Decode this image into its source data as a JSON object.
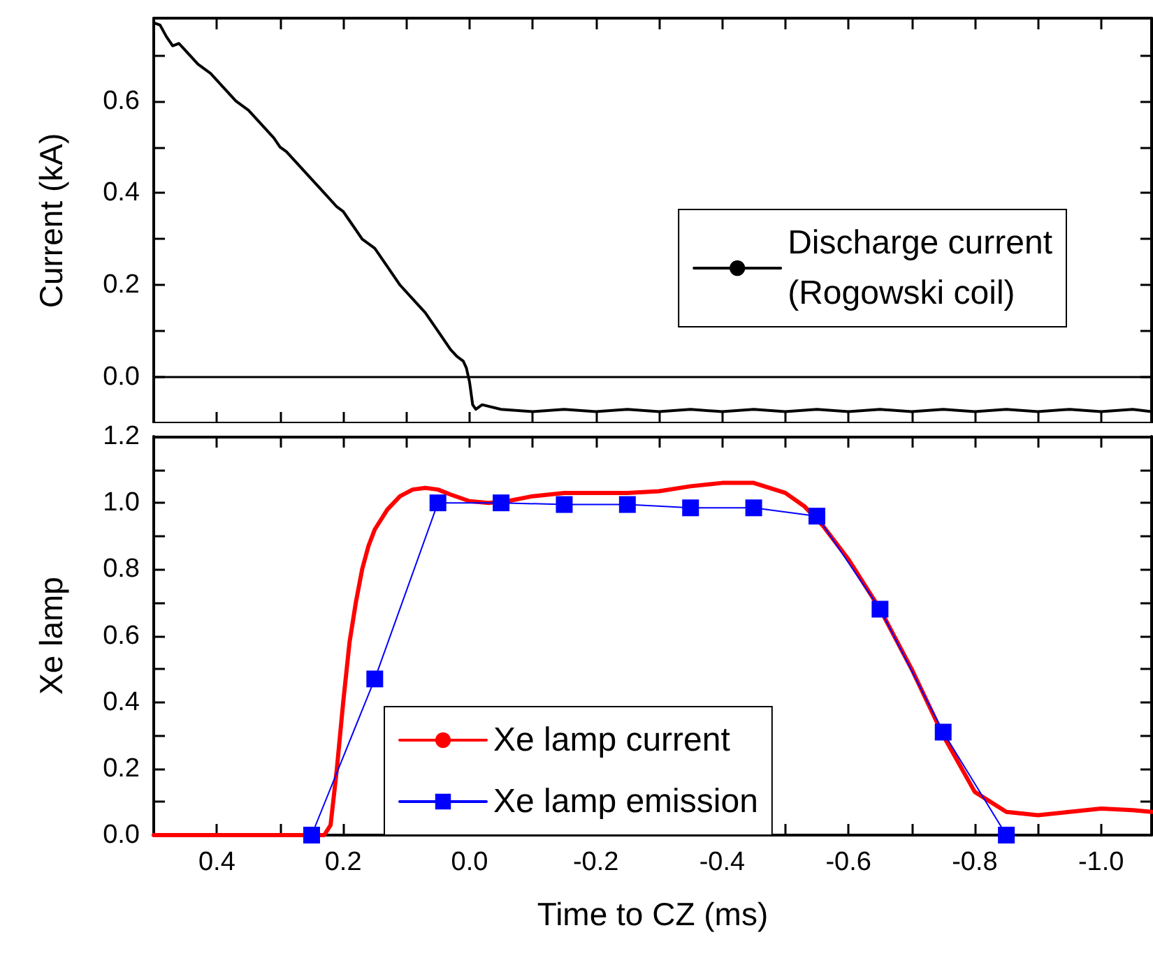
{
  "chart_data": [
    {
      "type": "line",
      "ylabel": "Current (kA)",
      "xlim": [
        0.5,
        -1.08
      ],
      "ylim": [
        -0.1,
        0.78
      ],
      "xticks": [
        {
          "value": 0.4,
          "label": null
        },
        {
          "value": 0.3,
          "label": null
        },
        {
          "value": 0.2,
          "label": null
        },
        {
          "value": 0.1,
          "label": null
        },
        {
          "value": 0,
          "label": null
        },
        {
          "value": -0.1,
          "label": null
        },
        {
          "value": -0.2,
          "label": null
        },
        {
          "value": -0.3,
          "label": null
        },
        {
          "value": -0.4,
          "label": null
        },
        {
          "value": -0.5,
          "label": null
        },
        {
          "value": -0.6,
          "label": null
        },
        {
          "value": -0.7,
          "label": null
        },
        {
          "value": -0.8,
          "label": null
        },
        {
          "value": -0.9,
          "label": null
        },
        {
          "value": -1.0,
          "label": null
        }
      ],
      "yticks": [
        {
          "value": 0,
          "label": "0.0"
        },
        {
          "value": 0.1,
          "label": null
        },
        {
          "value": 0.2,
          "label": "0.2"
        },
        {
          "value": 0.3,
          "label": null
        },
        {
          "value": 0.4,
          "label": "0.4"
        },
        {
          "value": 0.5,
          "label": null
        },
        {
          "value": 0.6,
          "label": "0.6"
        },
        {
          "value": 0.7,
          "label": null
        }
      ],
      "tick_labels": "y",
      "legend": "right",
      "grid": false,
      "ref_lines": [
        {
          "axis": "y",
          "value": 0,
          "color": "#000000"
        }
      ],
      "series": [
        {
          "name": "Discharge current\n(Rogowski coil)",
          "color": "#000000",
          "marker": "none",
          "line_style": "solid",
          "x": [
            0.5,
            0.49,
            0.48,
            0.47,
            0.46,
            0.45,
            0.43,
            0.41,
            0.39,
            0.37,
            0.35,
            0.33,
            0.31,
            0.3,
            0.29,
            0.27,
            0.25,
            0.23,
            0.21,
            0.2,
            0.19,
            0.17,
            0.15,
            0.13,
            0.12,
            0.11,
            0.09,
            0.07,
            0.05,
            0.03,
            0.02,
            0.01,
            0.005,
            0.0,
            -0.005,
            -0.01,
            -0.02,
            -0.05,
            -0.1,
            -0.15,
            -0.2,
            -0.25,
            -0.3,
            -0.35,
            -0.4,
            -0.45,
            -0.5,
            -0.55,
            -0.6,
            -0.65,
            -0.7,
            -0.75,
            -0.8,
            -0.85,
            -0.9,
            -0.95,
            -1.0,
            -1.05,
            -1.08
          ],
          "values": [
            0.77,
            0.765,
            0.74,
            0.72,
            0.725,
            0.71,
            0.68,
            0.66,
            0.63,
            0.6,
            0.58,
            0.55,
            0.52,
            0.5,
            0.49,
            0.46,
            0.43,
            0.4,
            0.37,
            0.36,
            0.34,
            0.3,
            0.28,
            0.24,
            0.22,
            0.2,
            0.17,
            0.14,
            0.1,
            0.06,
            0.045,
            0.035,
            0.02,
            -0.01,
            -0.06,
            -0.07,
            -0.06,
            -0.07,
            -0.075,
            -0.07,
            -0.075,
            -0.07,
            -0.075,
            -0.07,
            -0.075,
            -0.07,
            -0.075,
            -0.07,
            -0.075,
            -0.07,
            -0.075,
            -0.07,
            -0.075,
            -0.07,
            -0.075,
            -0.07,
            -0.075,
            -0.07,
            -0.075
          ]
        }
      ]
    },
    {
      "type": "line",
      "xlabel": "Time to CZ (ms)",
      "ylabel": "Xe lamp",
      "xlim": [
        0.5,
        -1.08
      ],
      "ylim": [
        0,
        1.2
      ],
      "xticks": [
        {
          "value": 0.4,
          "label": "0.4"
        },
        {
          "value": 0.3,
          "label": null
        },
        {
          "value": 0.2,
          "label": "0.2"
        },
        {
          "value": 0.1,
          "label": null
        },
        {
          "value": 0,
          "label": "0.0"
        },
        {
          "value": -0.1,
          "label": null
        },
        {
          "value": -0.2,
          "label": "-0.2"
        },
        {
          "value": -0.3,
          "label": null
        },
        {
          "value": -0.4,
          "label": "-0.4"
        },
        {
          "value": -0.5,
          "label": null
        },
        {
          "value": -0.6,
          "label": "-0.6"
        },
        {
          "value": -0.7,
          "label": null
        },
        {
          "value": -0.8,
          "label": "-0.8"
        },
        {
          "value": -0.9,
          "label": null
        },
        {
          "value": -1.0,
          "label": "-1.0"
        }
      ],
      "yticks": [
        {
          "value": 0,
          "label": "0.0"
        },
        {
          "value": 0.1,
          "label": null
        },
        {
          "value": 0.2,
          "label": "0.2"
        },
        {
          "value": 0.3,
          "label": null
        },
        {
          "value": 0.4,
          "label": "0.4"
        },
        {
          "value": 0.5,
          "label": null
        },
        {
          "value": 0.6,
          "label": "0.6"
        },
        {
          "value": 0.7,
          "label": null
        },
        {
          "value": 0.8,
          "label": "0.8"
        },
        {
          "value": 0.9,
          "label": null
        },
        {
          "value": 1.0,
          "label": "1.0"
        },
        {
          "value": 1.1,
          "label": null
        },
        {
          "value": 1.2,
          "label": "1.2"
        }
      ],
      "legend": "bottom",
      "grid": false,
      "series": [
        {
          "name": "Xe lamp current",
          "color": "#ff0000",
          "marker": "none",
          "line_style": "solid",
          "x": [
            0.5,
            0.3,
            0.23,
            0.22,
            0.21,
            0.2,
            0.19,
            0.18,
            0.17,
            0.16,
            0.15,
            0.13,
            0.11,
            0.09,
            0.07,
            0.05,
            0.03,
            0.0,
            -0.03,
            -0.06,
            -0.1,
            -0.15,
            -0.2,
            -0.25,
            -0.3,
            -0.35,
            -0.4,
            -0.45,
            -0.5,
            -0.53,
            -0.56,
            -0.6,
            -0.65,
            -0.7,
            -0.75,
            -0.8,
            -0.85,
            -0.9,
            -0.95,
            -1.0,
            -1.05,
            -1.08
          ],
          "values": [
            0,
            0,
            0,
            0.03,
            0.2,
            0.4,
            0.58,
            0.7,
            0.8,
            0.87,
            0.92,
            0.98,
            1.02,
            1.04,
            1.045,
            1.04,
            1.025,
            1.005,
            1.0,
            1.005,
            1.02,
            1.03,
            1.03,
            1.03,
            1.035,
            1.05,
            1.06,
            1.06,
            1.03,
            0.99,
            0.93,
            0.83,
            0.68,
            0.5,
            0.3,
            0.13,
            0.07,
            0.06,
            0.07,
            0.08,
            0.075,
            0.07
          ]
        },
        {
          "name": "Xe lamp emission",
          "color": "#0000ff",
          "marker": "square",
          "line_style": "solid",
          "x": [
            0.25,
            0.15,
            0.05,
            -0.05,
            -0.15,
            -0.25,
            -0.35,
            -0.45,
            -0.55,
            -0.65,
            -0.75,
            -0.85
          ],
          "values": [
            0,
            0.47,
            1.0,
            1.0,
            0.995,
            0.995,
            0.985,
            0.985,
            0.96,
            0.68,
            0.31,
            0
          ]
        }
      ]
    }
  ]
}
